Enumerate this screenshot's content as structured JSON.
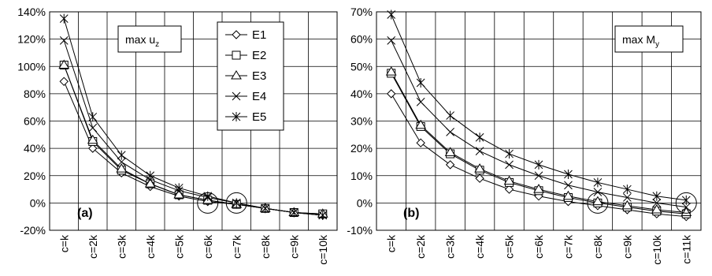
{
  "chart_data": [
    {
      "type": "line",
      "panel_label": "(a)",
      "annotation": {
        "main": "max u",
        "sub": "z"
      },
      "categories": [
        "c=k",
        "c=2k",
        "c=3k",
        "c=4k",
        "c=5k",
        "c=6k",
        "c=7k",
        "c=8k",
        "c=9k",
        "c=10k"
      ],
      "ylim": [
        -20,
        140
      ],
      "yticks": [
        -20,
        0,
        20,
        40,
        60,
        80,
        100,
        120,
        140
      ],
      "ytick_suffix": "%",
      "grid": true,
      "legend_position": "top-right",
      "series": [
        {
          "name": "E1",
          "marker": "diamond",
          "values": [
            89,
            40,
            22,
            12,
            5,
            1,
            -1,
            -4,
            -7,
            -9
          ]
        },
        {
          "name": "E2",
          "marker": "square",
          "values": [
            101,
            45,
            24,
            14,
            6,
            2,
            -1,
            -4,
            -7,
            -8
          ]
        },
        {
          "name": "E3",
          "marker": "triangle",
          "values": [
            101,
            46,
            25,
            14,
            6,
            2,
            -1,
            -4,
            -7,
            -8
          ]
        },
        {
          "name": "E4",
          "marker": "x",
          "values": [
            119,
            55,
            30,
            17,
            9,
            4,
            0,
            -4,
            -7,
            -9
          ]
        },
        {
          "name": "E5",
          "marker": "asterisk",
          "values": [
            135,
            63,
            35,
            20,
            11,
            5,
            0,
            -4,
            -7,
            -9
          ]
        }
      ],
      "circled_points": [
        5,
        6
      ]
    },
    {
      "type": "line",
      "panel_label": "(b)",
      "annotation": {
        "main": "max M",
        "sub": "y"
      },
      "categories": [
        "c=k",
        "c=2k",
        "c=3k",
        "c=4k",
        "c=5k",
        "c=6k",
        "c=7k",
        "c=8k",
        "c=9k",
        "c=10k",
        "c=11k"
      ],
      "ylim": [
        -10,
        70
      ],
      "yticks": [
        -10,
        0,
        10,
        20,
        30,
        40,
        50,
        60,
        70
      ],
      "ytick_suffix": "%",
      "grid": true,
      "series": [
        {
          "name": "E1",
          "marker": "diamond",
          "values": [
            40,
            22,
            14,
            9,
            5,
            2.5,
            0.5,
            -1,
            -2.5,
            -4,
            -5
          ]
        },
        {
          "name": "E2",
          "marker": "square",
          "values": [
            47.5,
            28,
            18,
            12,
            7.5,
            4.5,
            2,
            0,
            -1.5,
            -3,
            -4
          ]
        },
        {
          "name": "E3",
          "marker": "triangle",
          "values": [
            48,
            28.5,
            18.5,
            12.5,
            8,
            5,
            2.5,
            0.5,
            -1,
            -2.5,
            -3.5
          ]
        },
        {
          "name": "E4",
          "marker": "x",
          "values": [
            59.5,
            37,
            26,
            19,
            14,
            10,
            6.5,
            4,
            2,
            0,
            -1.5
          ]
        },
        {
          "name": "E5",
          "marker": "asterisk",
          "values": [
            69,
            44,
            32,
            24,
            18,
            14,
            10.5,
            7.5,
            5,
            2.5,
            1
          ]
        }
      ],
      "circled_points": [
        7,
        10
      ]
    }
  ]
}
